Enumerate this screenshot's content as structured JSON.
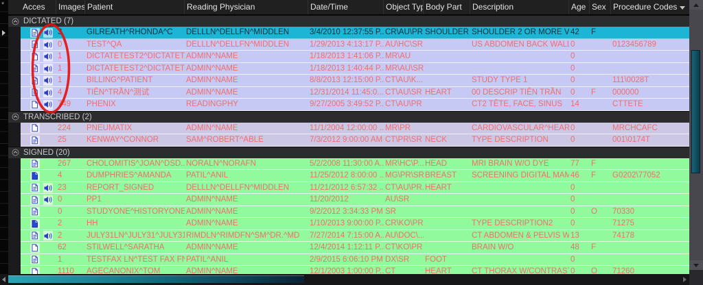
{
  "columns": [
    "Acces",
    "Images",
    "Patient",
    "Reading Physician",
    "Date/Time",
    "Object Type",
    "Body Part",
    "Description",
    "Age",
    "Sex",
    "Procedure Codes"
  ],
  "theme": {
    "selected_row": "#1db5d6",
    "selected_text": "#0a2f3d",
    "row_text": "#f06e6e",
    "annotation": "#e31414"
  },
  "annotation": {
    "shape": "ellipse",
    "color": "#e31414",
    "note": "circles dictation speaker icons column"
  },
  "groups": [
    {
      "id": "dictated",
      "title": "DICTATED (7)",
      "row_bg": "#c6c9f3",
      "rows": [
        {
          "selected": true,
          "doc": "lines",
          "speaker": true,
          "images": "3",
          "patient": "GILREATH^RHONDA^C",
          "physician": "DELLLN^DELLFN^MIDDLEN",
          "datetime": "3/4/2010 12:37:55 P...",
          "object_type": "CR\\AU\\PR...",
          "body_part": "SHOULDER",
          "description": "SHOULDER 2 OR MORE V...",
          "age": "42",
          "sex": "F",
          "codes": ""
        },
        {
          "doc": "lines",
          "speaker": true,
          "images": "0",
          "patient": "TEST^QA",
          "physician": "DELLLN^DELLFN^MIDDLEN",
          "datetime": "1/29/2013 4:13:17 P...",
          "object_type": "AU\\HC\\SR",
          "body_part": "",
          "description": "US ABDOMEN BACK WALL...",
          "age": "0",
          "sex": "",
          "codes": "0123456789"
        },
        {
          "doc": "plain",
          "speaker": true,
          "images": "1",
          "patient": "DICTATETEST2^DICTATET...",
          "physician": "ADMIN^NAME",
          "datetime": "1/18/2013 1:41:06 P...",
          "object_type": "MR\\AU",
          "body_part": "",
          "description": "",
          "age": "0",
          "sex": "",
          "codes": ""
        },
        {
          "doc": "lines",
          "speaker": true,
          "images": "1",
          "patient": "DICTATETEST2^DICTATET...",
          "physician": "ADMIN^NAME",
          "datetime": "1/18/2013 1:40:44 P...",
          "object_type": "MR\\AU\\SR",
          "body_part": "",
          "description": "",
          "age": "0",
          "sex": "",
          "codes": ""
        },
        {
          "doc": "lines",
          "speaker": true,
          "images": "1",
          "patient": "BILLING^PATIENT",
          "physician": "ADMIN^NAME",
          "datetime": "8/8/2013 12:15:00 P...",
          "object_type": "CT\\AU\\K...",
          "body_part": "",
          "description": "STUDY TYPE 1",
          "age": "0",
          "sex": "",
          "codes": "111\\0028T"
        },
        {
          "doc": "lines",
          "speaker": true,
          "images": "4",
          "patient": "TIÊN^TRẦN^测试",
          "physician": "ADMIN^NAME",
          "datetime": "12/31/2014 11:45:0...",
          "object_type": "CT\\AU\\SR",
          "body_part": "HEART",
          "description": "00 DESCRIP TIÊN TRẦN",
          "age": "0",
          "sex": "F",
          "codes": "000000"
        },
        {
          "doc": "plain",
          "speaker": true,
          "images": "749",
          "patient": "PHENIX",
          "physician": "READINGPHY",
          "datetime": "9/27/2005 3:49:52 P...",
          "object_type": "CT\\AU\\PR",
          "body_part": "",
          "description": "CT2 TÊTE, FACE, SINUS",
          "age": "14",
          "sex": "",
          "codes": "CTTETE"
        }
      ]
    },
    {
      "id": "transcribed",
      "title": "TRANSCRIBED (2)",
      "row_bg": "#cdc7e6",
      "rows": [
        {
          "doc": "plain",
          "speaker": false,
          "images": "224",
          "patient": "PNEUMATIX",
          "physician": "ADMIN^NAME",
          "datetime": "11/1/2004 12:00:00 ...",
          "object_type": "MR\\PR",
          "body_part": "",
          "description": "CARDIOVASCULAR^HEAR...",
          "age": "0",
          "sex": "",
          "codes": "MRCHCAFC"
        },
        {
          "doc": "lines",
          "speaker": false,
          "images": "25",
          "patient": "KENWAY^CONNOR",
          "physician": "SAM^ROBERT^ABLE",
          "datetime": "7/3/2012 9:00:00 AM",
          "object_type": "CT\\PR\\SR",
          "body_part": "NECK",
          "description": "TYPE DESCRIPTION",
          "age": "0",
          "sex": "",
          "codes": "001\\0174T"
        }
      ]
    },
    {
      "id": "signed",
      "title": "SIGNED (20)",
      "row_bg": "#90fa9c",
      "rows": [
        {
          "doc": "lines",
          "speaker": false,
          "images": "267",
          "patient": "CHOLOMITIS^JOAN^DSD...",
          "physician": "NORALN^NORAFN",
          "datetime": "5/2/2008 11:30:00 A...",
          "object_type": "MR\\HC\\P...",
          "body_part": "HEAD",
          "description": "MRI BRAIN W/O DYE",
          "age": "77",
          "sex": "F",
          "codes": ""
        },
        {
          "doc": "solid",
          "speaker": false,
          "images": "4",
          "patient": "DUMPHRIES^AMANDA",
          "physician": "PATIL^ANIL",
          "datetime": "11/25/2012 8:00:00 ...",
          "object_type": "MG\\PR\\SR",
          "body_part": "BREAST",
          "description": "SCREENING DIGITAL MAM...",
          "age": "46",
          "sex": "F",
          "codes": "G0202\\77052"
        },
        {
          "doc": "lines",
          "speaker": true,
          "images": "23",
          "patient": "REPORT_SIGNED",
          "physician": "DELLLN^DELLFN^MIDDLEN",
          "datetime": "11/21/2012 6:57:32 ...",
          "object_type": "CT\\AU\\PR...",
          "body_part": "HEART",
          "description": "",
          "age": "0",
          "sex": "",
          "codes": ""
        },
        {
          "doc": "lines",
          "speaker": true,
          "images": "0",
          "patient": "PP1",
          "physician": "ADMIN^NAME",
          "datetime": "11/20/2012",
          "object_type": "AU\\SR",
          "body_part": "",
          "description": "",
          "age": "0",
          "sex": "",
          "codes": ""
        },
        {
          "doc": "lines",
          "speaker": false,
          "images": "0",
          "patient": "STUDYONE^HISTORYONE",
          "physician": "ADMIN^NAME",
          "datetime": "9/2/2012 3:34:33 PM",
          "object_type": "SR",
          "body_part": "",
          "description": "",
          "age": "0",
          "sex": "O",
          "codes": "70330"
        },
        {
          "doc": "solid",
          "speaker": false,
          "images": "2",
          "patient": "HH",
          "physician": "ADMIN^NAME",
          "datetime": "1/10/2013 9:00:00 P...",
          "object_type": "CR\\KO\\PR...",
          "body_part": "",
          "description": "TYPE DESCRIPTION2",
          "age": "0",
          "sex": "",
          "codes": "71275"
        },
        {
          "doc": "lines",
          "speaker": true,
          "images": "2",
          "patient": "JULY31LN^JULY31^JULY31...",
          "physician": "RIMDLN^RIMDFN^SM^DR.^MD",
          "datetime": "7/27/2014 7:15:00 A...",
          "object_type": "AU\\DOC\\...",
          "body_part": "",
          "description": "CT ABDOMEN & PELVIS W...",
          "age": "13",
          "sex": "",
          "codes": "74178"
        },
        {
          "doc": "plain",
          "speaker": false,
          "images": "62",
          "patient": "STILWELL^SARATHA",
          "physician": "ADMIN^NAME",
          "datetime": "12/4/2014 1:12:11 P...",
          "object_type": "CT\\KO\\PR",
          "body_part": "",
          "description": "BRAIN W/O",
          "age": "48",
          "sex": "F",
          "codes": ""
        },
        {
          "doc": "lines",
          "speaker": false,
          "images": "1",
          "patient": "TESTFAX LN^TEST FAX FN",
          "physician": "PATIL^ANIL",
          "datetime": "2/9/2015 6:06:10 PM",
          "object_type": "DX\\SR",
          "body_part": "FOOT",
          "description": "",
          "age": "0",
          "sex": "",
          "codes": ""
        },
        {
          "doc": "plain",
          "speaker": false,
          "images": "1110",
          "patient": "AGECANONIX^TOM",
          "physician": "ADMIN^NAME",
          "datetime": "12/1/2003 1:00:00 P...",
          "object_type": "CT",
          "body_part": "HEART",
          "description": "CT THORAX W/CONTRAST",
          "age": "0",
          "sex": "O",
          "codes": "71260"
        }
      ]
    }
  ]
}
